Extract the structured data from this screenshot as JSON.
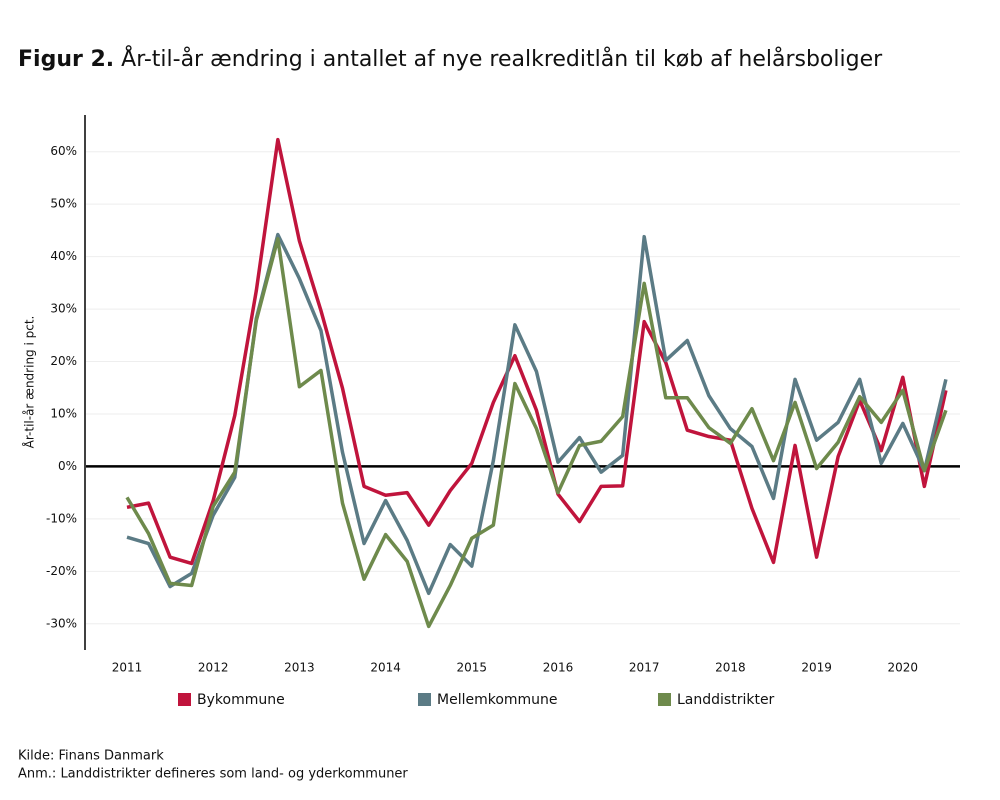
{
  "chart_data": {
    "type": "line",
    "figure_label": "Figur 2.",
    "title": "År-til-år ændring i antallet af nye realkreditlån til køb af helårsboliger",
    "y_label": "År-til-år ændring i pct.",
    "source": "Kilde: Finans Danmark",
    "note": "Anm.: Landdistrikter defineres som land- og yderkommuner",
    "categories": [
      "2011",
      null,
      null,
      null,
      "2012",
      null,
      null,
      null,
      "2013",
      null,
      null,
      null,
      "2014",
      null,
      null,
      null,
      "2015",
      null,
      null,
      null,
      "2016",
      null,
      null,
      null,
      "2017",
      null,
      null,
      null,
      "2018",
      null,
      null,
      null,
      "2019",
      null,
      null,
      null,
      "2020",
      null,
      null
    ],
    "series": [
      {
        "name": "Bykommune",
        "color": "#c0143c",
        "values": [
          -7.8,
          -7,
          -17.3,
          -18.5,
          -6.5,
          9.7,
          33.5,
          62.3,
          43,
          29.7,
          14.9,
          -3.8,
          -5.5,
          -5,
          -11.2,
          -4.6,
          0.6,
          12.2,
          21.1,
          10.7,
          -5.3,
          -10.5,
          -3.8,
          -3.7,
          27.6,
          19.8,
          6.9,
          5.7,
          5,
          -8,
          -18.3,
          4,
          -17.3,
          1.9,
          12.6,
          3,
          17,
          -3.8,
          14.5
        ]
      },
      {
        "name": "Mellemkommune",
        "color": "#5b7b85",
        "values": [
          -13.5,
          -14.7,
          -22.9,
          -20.4,
          -9.3,
          -2.1,
          28.2,
          44.2,
          35.8,
          25.9,
          2.7,
          -14.7,
          -6.5,
          -14.1,
          -24.2,
          -14.9,
          -19,
          1.1,
          27,
          18.1,
          0.8,
          5.5,
          -1.1,
          2.1,
          43.8,
          20.2,
          24,
          13.5,
          7.2,
          3.8,
          -6.1,
          16.6,
          5,
          8.4,
          16.6,
          0.6,
          8.2,
          -0.8,
          16.6
        ]
      },
      {
        "name": "Landdistrikter",
        "color": "#6e8a4c",
        "values": [
          -5.9,
          -12.8,
          -22.3,
          -22.7,
          -7.6,
          -1.1,
          27.8,
          43.4,
          15.2,
          18.3,
          -7,
          -21.5,
          -13,
          -18.1,
          -30.5,
          -22.7,
          -13.7,
          -11.2,
          15.8,
          7.2,
          -5,
          4,
          4.8,
          9.5,
          34.9,
          13.1,
          13.1,
          7.4,
          4.4,
          11,
          1.1,
          12.2,
          -0.4,
          4.6,
          13.3,
          8.4,
          14.5,
          -0.8,
          10.7
        ]
      }
    ],
    "ylim": [
      -35,
      67
    ],
    "yticks": [
      {
        "value": -30,
        "label": "-30%"
      },
      {
        "value": -20,
        "label": "-20%"
      },
      {
        "value": -10,
        "label": "-10%"
      },
      {
        "value": 0,
        "label": "0%"
      },
      {
        "value": 10,
        "label": "10%"
      },
      {
        "value": 20,
        "label": "20%"
      },
      {
        "value": 30,
        "label": "30%"
      },
      {
        "value": 40,
        "label": "40%"
      },
      {
        "value": 50,
        "label": "50%"
      },
      {
        "value": 60,
        "label": "60%"
      }
    ],
    "grid": true
  }
}
